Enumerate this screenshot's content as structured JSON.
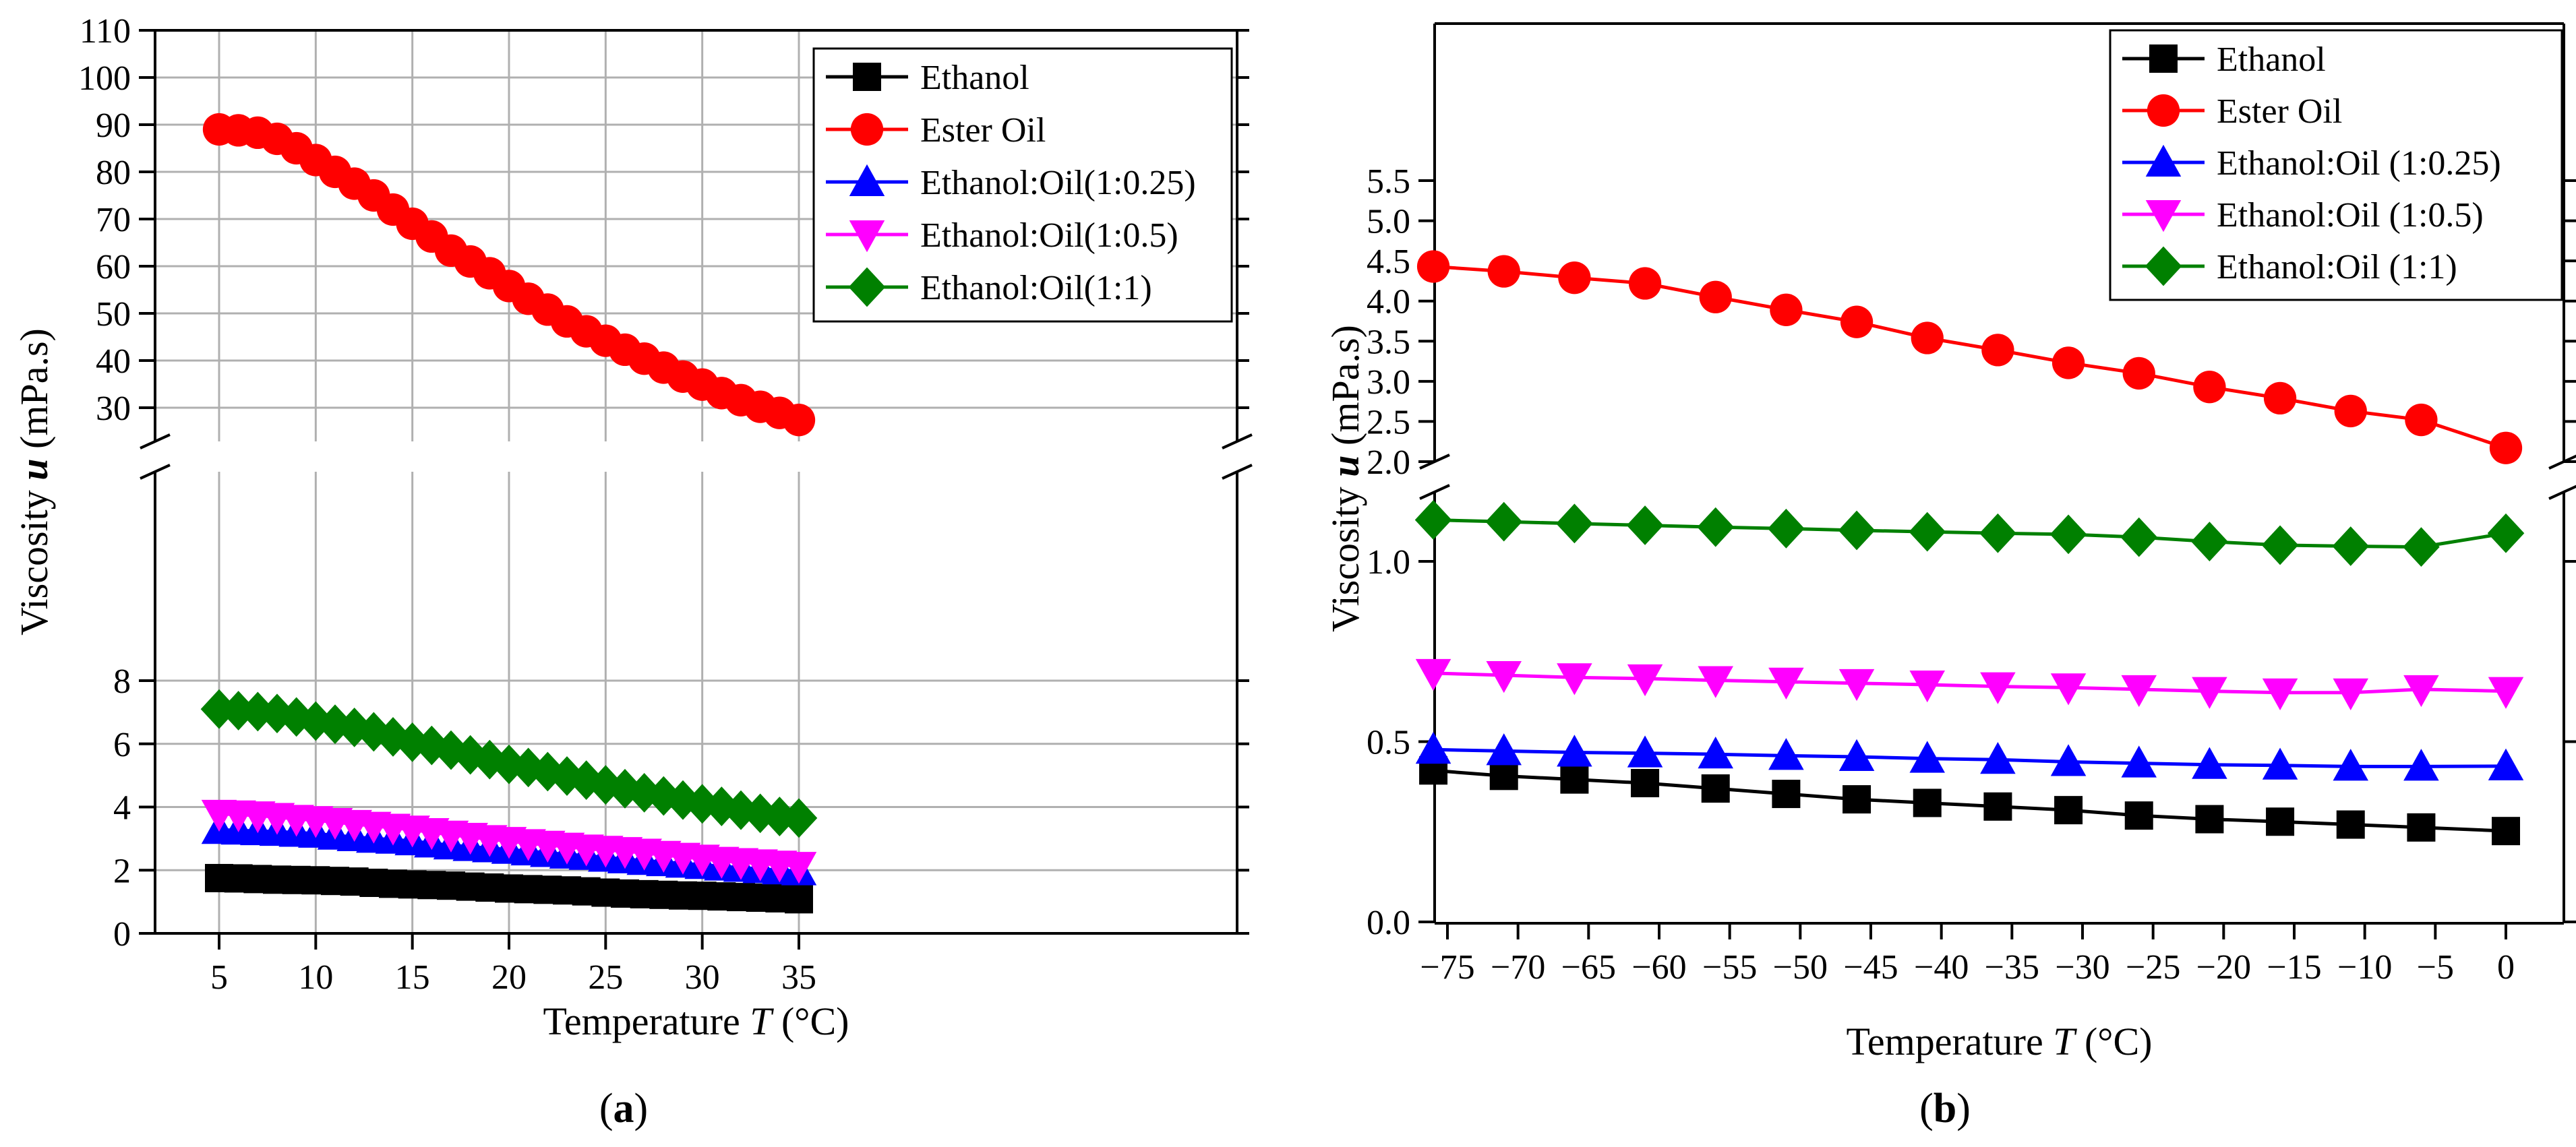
{
  "panels": [
    {
      "caption": "(a)",
      "caption_letter": "a",
      "chart_data": {
        "type": "line",
        "xlabel_prefix": "Temperature ",
        "xlabel_var": "T",
        "xlabel_unit": " (°C)",
        "ylabel_prefix": "Viscosity ",
        "ylabel_var": "u",
        "ylabel_unit": " (mPa.s)",
        "xlim": [
          2,
          38
        ],
        "xticks": [
          5,
          10,
          15,
          20,
          25,
          30,
          35
        ],
        "ylim_lower": [
          0,
          9
        ],
        "ylim_upper": [
          22,
          110
        ],
        "yticks_lower": [
          0,
          2,
          4,
          6,
          8
        ],
        "yticks_upper": [
          30,
          40,
          50,
          60,
          70,
          80,
          90,
          100,
          110
        ],
        "grid": true,
        "legend_position": "top-right",
        "x": [
          5,
          6,
          7,
          8,
          9,
          10,
          11,
          12,
          13,
          14,
          15,
          16,
          17,
          18,
          19,
          20,
          21,
          22,
          23,
          24,
          25,
          26,
          27,
          28,
          29,
          30,
          31,
          32,
          33,
          34,
          35
        ],
        "series": [
          {
            "name": "Ethanol",
            "color": "#000000",
            "marker": "square",
            "values": [
              1.75,
              1.74,
              1.72,
              1.7,
              1.69,
              1.68,
              1.66,
              1.64,
              1.6,
              1.57,
              1.55,
              1.53,
              1.51,
              1.48,
              1.45,
              1.42,
              1.4,
              1.38,
              1.36,
              1.33,
              1.29,
              1.26,
              1.24,
              1.22,
              1.2,
              1.19,
              1.17,
              1.15,
              1.13,
              1.11,
              1.08
            ]
          },
          {
            "name": "Ester Oil",
            "color": "#ff0000",
            "marker": "circle",
            "values": [
              89.0,
              88.8,
              88.3,
              87.0,
              85.0,
              82.5,
              80.0,
              77.5,
              75.0,
              72.0,
              69.0,
              66.3,
              63.3,
              61.0,
              58.5,
              55.8,
              53.1,
              50.8,
              48.3,
              46.2,
              44.2,
              42.3,
              40.4,
              38.5,
              36.6,
              34.9,
              33.1,
              31.6,
              30.2,
              28.9,
              27.4
            ]
          },
          {
            "name": "Ethanol:Oil(1:0.25)",
            "color": "#0000ff",
            "marker": "triangle-up",
            "values": [
              3.28,
              3.26,
              3.24,
              3.22,
              3.19,
              3.16,
              3.1,
              3.05,
              3.0,
              2.97,
              2.92,
              2.85,
              2.79,
              2.74,
              2.7,
              2.65,
              2.6,
              2.55,
              2.5,
              2.46,
              2.4,
              2.35,
              2.3,
              2.26,
              2.21,
              2.17,
              2.12,
              2.08,
              2.04,
              2.0,
              1.97
            ]
          },
          {
            "name": "Ethanol:Oil(1:0.5)",
            "color": "#ff00ff",
            "marker": "triangle-down",
            "values": [
              3.78,
              3.76,
              3.73,
              3.68,
              3.62,
              3.58,
              3.52,
              3.46,
              3.4,
              3.34,
              3.28,
              3.2,
              3.12,
              3.05,
              2.98,
              2.92,
              2.85,
              2.8,
              2.74,
              2.68,
              2.64,
              2.6,
              2.55,
              2.48,
              2.42,
              2.36,
              2.29,
              2.25,
              2.21,
              2.17,
              2.13
            ]
          },
          {
            "name": "Ethanol:Oil(1:1)",
            "color": "#008000",
            "marker": "diamond",
            "values": [
              7.1,
              7.05,
              7.02,
              6.96,
              6.85,
              6.72,
              6.62,
              6.52,
              6.38,
              6.22,
              6.05,
              5.95,
              5.8,
              5.65,
              5.5,
              5.35,
              5.25,
              5.12,
              4.98,
              4.85,
              4.7,
              4.58,
              4.45,
              4.35,
              4.22,
              4.1,
              4.02,
              3.9,
              3.8,
              3.7,
              3.65
            ]
          }
        ]
      }
    },
    {
      "caption": "(b)",
      "caption_letter": "b",
      "chart_data": {
        "type": "line",
        "xlabel_prefix": "Temperature ",
        "xlabel_var": "T",
        "xlabel_unit": " (°C)",
        "ylabel_prefix": "Viscosity ",
        "ylabel_var": "u",
        "ylabel_unit": " (mPa.s)",
        "xlim": [
          -78,
          2
        ],
        "xticks": [
          -75,
          -70,
          -65,
          -60,
          -55,
          -50,
          -45,
          -40,
          -35,
          -30,
          -25,
          -20,
          -15,
          -10,
          -5,
          0
        ],
        "ylim_lower": [
          0,
          1.25
        ],
        "ylim_upper": [
          1.9,
          5.7
        ],
        "yticks_lower": [
          0.0,
          0.5,
          1.0
        ],
        "yticks_upper": [
          2.0,
          2.5,
          3.0,
          3.5,
          4.0,
          4.5,
          5.0,
          5.5
        ],
        "grid": false,
        "legend_position": "top-right",
        "x": [
          -76,
          -71,
          -66,
          -61,
          -56,
          -51,
          -46,
          -41,
          -36,
          -31,
          -26,
          -21,
          -16,
          -11,
          -6,
          0
        ],
        "series": [
          {
            "name": "Ethanol",
            "color": "#000000",
            "marker": "square",
            "values": [
              0.42,
              0.405,
              0.395,
              0.385,
              0.37,
              0.355,
              0.34,
              0.33,
              0.32,
              0.31,
              0.295,
              0.285,
              0.278,
              0.27,
              0.262,
              0.252
            ]
          },
          {
            "name": "Ester Oil",
            "color": "#ff0000",
            "marker": "circle",
            "values": [
              4.43,
              4.37,
              4.29,
              4.22,
              4.05,
              3.89,
              3.74,
              3.54,
              3.39,
              3.23,
              3.1,
              2.93,
              2.79,
              2.63,
              2.52,
              2.17
            ]
          },
          {
            "name": "Ethanol:Oil (1:0.25)",
            "color": "#0000ff",
            "marker": "triangle-up",
            "values": [
              0.478,
              0.474,
              0.47,
              0.468,
              0.465,
              0.461,
              0.458,
              0.453,
              0.45,
              0.444,
              0.44,
              0.436,
              0.434,
              0.431,
              0.431,
              0.432
            ]
          },
          {
            "name": "Ethanol:Oil (1:0.5)",
            "color": "#ff00ff",
            "marker": "triangle-down",
            "values": [
              0.69,
              0.684,
              0.678,
              0.675,
              0.67,
              0.666,
              0.662,
              0.658,
              0.653,
              0.65,
              0.645,
              0.64,
              0.636,
              0.636,
              0.645,
              0.64
            ]
          },
          {
            "name": "Ethanol:Oil (1:1)",
            "color": "#008000",
            "marker": "diamond",
            "values": [
              1.115,
              1.11,
              1.105,
              1.1,
              1.095,
              1.091,
              1.086,
              1.082,
              1.078,
              1.075,
              1.067,
              1.055,
              1.045,
              1.042,
              1.04,
              1.078
            ]
          }
        ]
      }
    }
  ]
}
